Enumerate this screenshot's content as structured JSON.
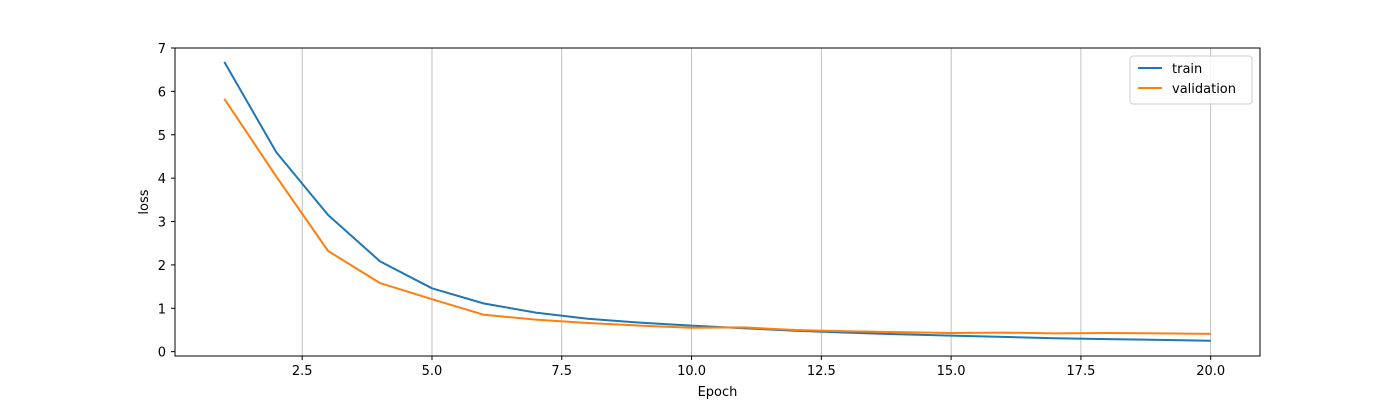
{
  "chart_data": {
    "type": "line",
    "title": "",
    "xlabel": "Epoch",
    "ylabel": "loss",
    "xlim": [
      0.05,
      20.95
    ],
    "ylim": [
      -0.1,
      7.0
    ],
    "xticks": [
      2.5,
      5.0,
      7.5,
      10.0,
      12.5,
      15.0,
      17.5,
      20.0
    ],
    "xtick_labels": [
      "2.5",
      "5.0",
      "7.5",
      "10.0",
      "12.5",
      "15.0",
      "17.5",
      "20.0"
    ],
    "yticks": [
      0,
      1,
      2,
      3,
      4,
      5,
      6,
      7
    ],
    "ytick_labels": [
      "0",
      "1",
      "2",
      "3",
      "4",
      "5",
      "6",
      "7"
    ],
    "grid": "x",
    "legend_position": "top-right",
    "x": [
      1,
      2,
      3,
      4,
      5,
      6,
      7,
      8,
      9,
      10,
      11,
      12,
      13,
      14,
      15,
      16,
      17,
      18,
      19,
      20
    ],
    "series": [
      {
        "name": "train",
        "color": "#1f77b4",
        "values": [
          6.68,
          4.6,
          3.15,
          2.08,
          1.46,
          1.11,
          0.9,
          0.76,
          0.67,
          0.6,
          0.54,
          0.48,
          0.44,
          0.4,
          0.37,
          0.34,
          0.31,
          0.29,
          0.27,
          0.25
        ]
      },
      {
        "name": "validation",
        "color": "#ff7f0e",
        "values": [
          5.83,
          4.04,
          2.32,
          1.58,
          1.21,
          0.85,
          0.74,
          0.66,
          0.6,
          0.55,
          0.56,
          0.5,
          0.47,
          0.45,
          0.43,
          0.44,
          0.42,
          0.43,
          0.42,
          0.41
        ]
      }
    ]
  }
}
